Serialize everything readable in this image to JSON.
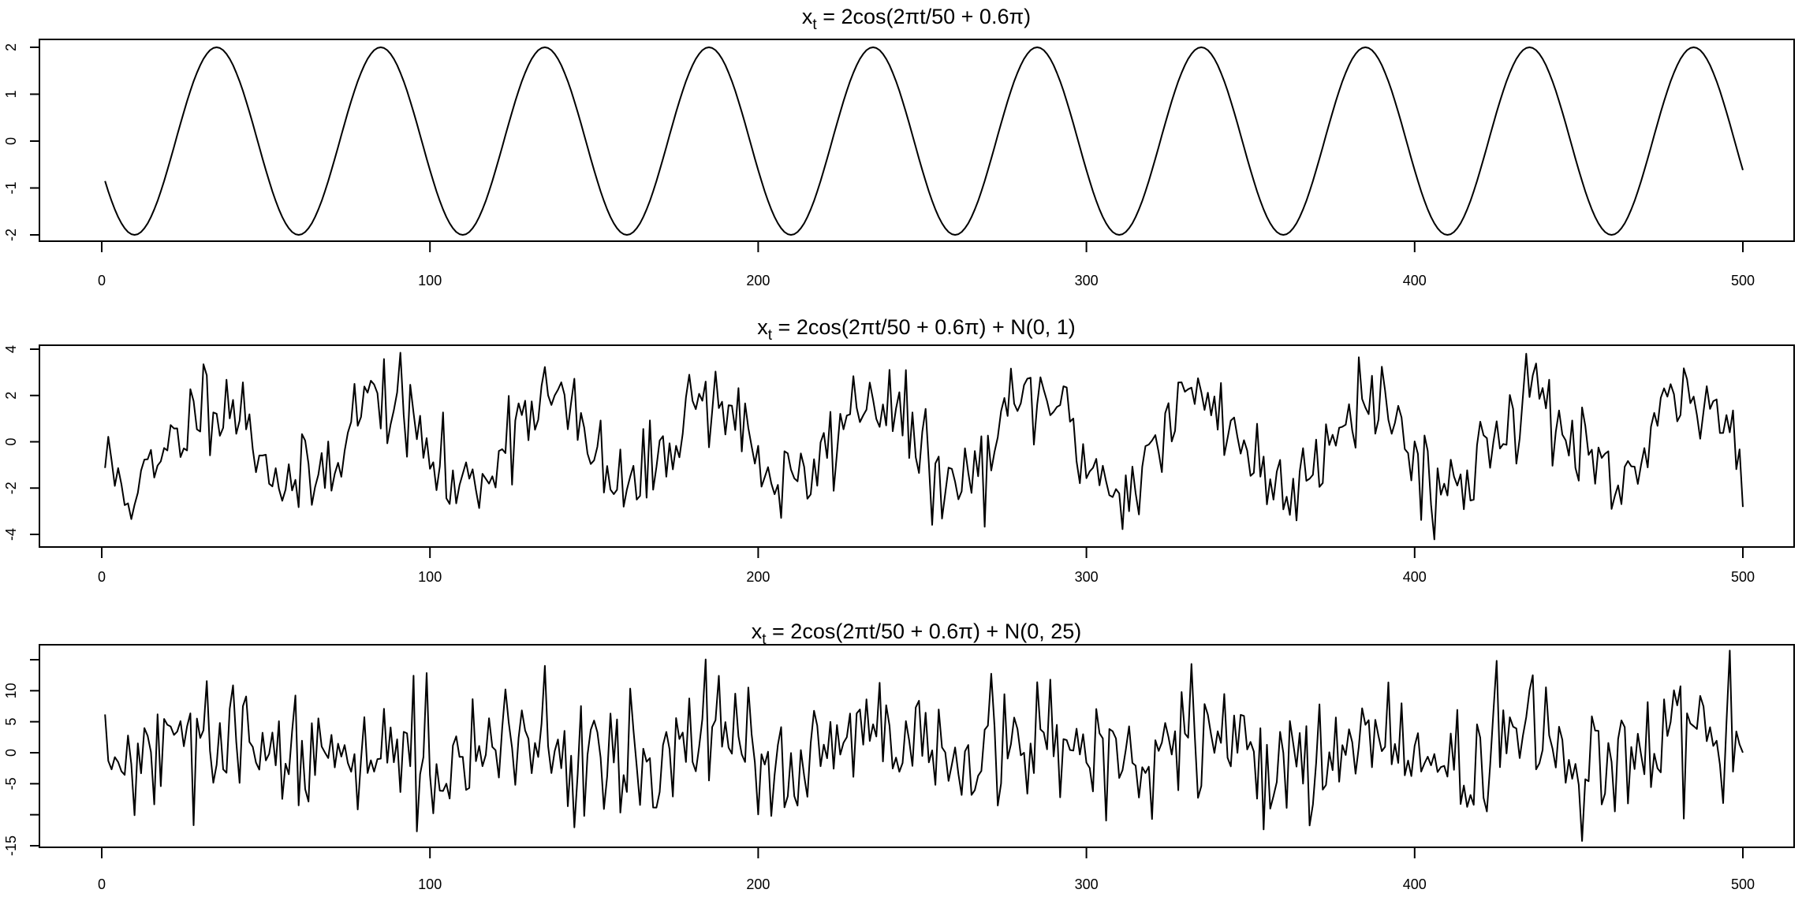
{
  "chart_data": [
    {
      "type": "line",
      "title": {
        "var": "x",
        "sub": "t",
        "expr": " = 2cos(2πt/50 + 0.6π)"
      },
      "model": {
        "amplitude": 2,
        "period": 50,
        "phase_pi": 0.6,
        "noise_sd": 0,
        "n": 500
      },
      "xlim": [
        1,
        500
      ],
      "ylim": [
        -2,
        2
      ],
      "xticks": [
        0,
        100,
        200,
        300,
        400,
        500
      ],
      "yticks": [
        -2,
        -1,
        0,
        1,
        2
      ],
      "ytick_labels": [
        "-2",
        "-1",
        "0",
        "1",
        "2"
      ]
    },
    {
      "type": "line",
      "title": {
        "var": "x",
        "sub": "t",
        "expr": " = 2cos(2πt/50 + 0.6π) + N(0, 1)"
      },
      "model": {
        "amplitude": 2,
        "period": 50,
        "phase_pi": 0.6,
        "noise_sd": 1,
        "n": 500,
        "seed": 11
      },
      "xlim": [
        1,
        500
      ],
      "ylim": [
        -4.3,
        3.8
      ],
      "xticks": [
        0,
        100,
        200,
        300,
        400,
        500
      ],
      "yticks": [
        -4,
        -2,
        0,
        2,
        4
      ],
      "ytick_labels": [
        "-4",
        "-2",
        "0",
        "2",
        "4"
      ]
    },
    {
      "type": "line",
      "title": {
        "var": "x",
        "sub": "t",
        "expr": " = 2cos(2πt/50 + 0.6π) + N(0, 25)"
      },
      "model": {
        "amplitude": 2,
        "period": 50,
        "phase_pi": 0.6,
        "noise_sd": 5,
        "n": 500,
        "seed": 29
      },
      "xlim": [
        1,
        500
      ],
      "ylim": [
        -14.5,
        16
      ],
      "xticks": [
        0,
        100,
        200,
        300,
        400,
        500
      ],
      "yticks": [
        -15,
        -10,
        -5,
        0,
        5,
        10,
        15
      ],
      "ytick_labels": [
        "-15",
        "",
        "-5",
        "0",
        "5",
        "10",
        ""
      ]
    }
  ]
}
